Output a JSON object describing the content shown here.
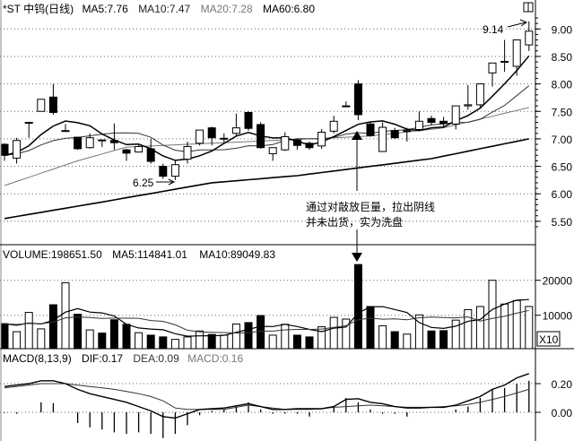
{
  "price_header": {
    "title": "*ST 中钨(日线)",
    "ma5": "MA5:7.76",
    "ma10": "MA10:7.47",
    "ma20": "MA20:7.28",
    "ma60": "MA60:6.80"
  },
  "volume_header": {
    "volume": "VOLUME:198651.50",
    "ma5": "MA5:114841.01",
    "ma10": "MA10:89049.83"
  },
  "macd_header": {
    "params": "MACD(8,13,9)",
    "dif": "DIF:0.17",
    "dea": "DEA:0.09",
    "macd": "MACD:0.16"
  },
  "annotations": {
    "high_label": "9.14",
    "low_label": "6.25",
    "note_line1": "通过对敲放巨量，拉出阴线",
    "note_line2": "并未出货，实为洗盘"
  },
  "colors": {
    "up": "#ffffff",
    "down": "#000000",
    "line": "#000000",
    "ma20": "#777777",
    "grid": "#888888"
  },
  "chart_data": [
    {
      "type": "candlestick",
      "title": "*ST 中钨(日线)",
      "fields": [
        "open",
        "close",
        "high",
        "low"
      ],
      "yticks": [
        "5.50",
        "6.00",
        "6.50",
        "7.00",
        "7.50",
        "8.00",
        "8.50",
        "9.00"
      ],
      "ylim": [
        5.3,
        9.5
      ],
      "candles": [
        [
          6.9,
          6.7,
          6.92,
          6.6
        ],
        [
          6.65,
          6.97,
          7.02,
          6.55
        ],
        [
          7.3,
          7.3,
          7.3,
          7.02
        ],
        [
          7.5,
          7.72,
          7.72,
          7.5
        ],
        [
          7.76,
          7.48,
          8.0,
          7.44
        ],
        [
          7.14,
          7.15,
          7.27,
          7.14
        ],
        [
          7.03,
          6.82,
          7.03,
          6.8
        ],
        [
          6.84,
          7.02,
          7.1,
          6.82
        ],
        [
          6.98,
          6.97,
          6.98,
          6.85
        ],
        [
          6.97,
          6.93,
          7.28,
          6.8
        ],
        [
          6.8,
          6.74,
          6.82,
          6.6
        ],
        [
          6.76,
          6.86,
          6.9,
          6.75
        ],
        [
          6.82,
          6.59,
          7.0,
          6.55
        ],
        [
          6.5,
          6.32,
          6.55,
          6.27
        ],
        [
          6.32,
          6.53,
          6.6,
          6.25
        ],
        [
          6.63,
          6.86,
          6.95,
          6.55
        ],
        [
          6.92,
          7.16,
          7.16,
          6.88
        ],
        [
          7.2,
          7.02,
          7.22,
          6.88
        ],
        [
          7.0,
          7.01,
          7.1,
          6.93
        ],
        [
          7.1,
          7.2,
          7.46,
          7.05
        ],
        [
          7.48,
          7.19,
          7.5,
          7.15
        ],
        [
          7.26,
          6.84,
          7.3,
          6.82
        ],
        [
          6.73,
          6.84,
          6.84,
          6.6
        ],
        [
          6.8,
          7.04,
          7.12,
          6.78
        ],
        [
          6.98,
          6.88,
          7.0,
          6.8
        ],
        [
          6.92,
          6.84,
          6.95,
          6.8
        ],
        [
          6.87,
          7.12,
          7.18,
          6.82
        ],
        [
          7.14,
          7.32,
          7.42,
          7.1
        ],
        [
          7.6,
          7.6,
          7.68,
          7.58
        ],
        [
          8.0,
          7.44,
          8.07,
          7.34
        ],
        [
          7.27,
          7.06,
          7.3,
          7.04
        ],
        [
          6.77,
          7.21,
          7.3,
          6.76
        ],
        [
          7.15,
          7.02,
          7.2,
          7.0
        ],
        [
          7.14,
          7.15,
          7.2,
          6.95
        ],
        [
          7.17,
          7.32,
          7.5,
          7.15
        ],
        [
          7.37,
          7.3,
          7.42,
          7.25
        ],
        [
          7.32,
          7.28,
          7.4,
          7.22
        ],
        [
          7.27,
          7.6,
          7.6,
          7.17
        ],
        [
          7.6,
          7.62,
          7.98,
          7.53
        ],
        [
          7.62,
          8.0,
          8.0,
          7.55
        ],
        [
          8.2,
          8.38,
          8.38,
          7.95
        ],
        [
          8.4,
          8.41,
          8.8,
          8.22
        ],
        [
          8.32,
          8.8,
          8.8,
          8.15
        ],
        [
          8.71,
          8.96,
          9.14,
          8.6
        ]
      ],
      "ma20_samples": {
        "index": [
          0,
          6,
          10,
          20,
          30,
          36,
          43
        ],
        "value": [
          6.15,
          6.6,
          6.85,
          6.95,
          7.05,
          7.2,
          7.57
        ]
      },
      "ma60_samples": {
        "index": [
          0,
          8,
          17,
          24,
          35,
          43
        ],
        "value": [
          5.55,
          5.85,
          6.2,
          6.33,
          6.64,
          7.0
        ]
      }
    },
    {
      "type": "bar",
      "title": "VOLUME",
      "multiplier_label": "X10",
      "yticks": [
        "10000",
        "20000"
      ],
      "ylim": [
        0,
        25000
      ],
      "values": [
        7600,
        5300,
        10800,
        6100,
        13000,
        19300,
        10300,
        5800,
        4900,
        8700,
        7400,
        5000,
        4300,
        3800,
        3100,
        3800,
        5500,
        4500,
        4300,
        7500,
        7900,
        9900,
        4300,
        7400,
        4300,
        3800,
        6700,
        9400,
        8900,
        24500,
        12500,
        7000,
        5300,
        4600,
        10100,
        5500,
        5600,
        8600,
        11600,
        12500,
        20000,
        13200,
        14200,
        12500
      ]
    },
    {
      "type": "line",
      "title": "MACD(8,13,9)",
      "yticks": [
        "0.00",
        "0.20"
      ],
      "ylim": [
        -0.2,
        0.3
      ],
      "dif": [
        0.18,
        0.19,
        0.2,
        0.22,
        0.22,
        0.2,
        0.16,
        0.13,
        0.11,
        0.09,
        0.07,
        0.04,
        0.01,
        -0.03,
        -0.04,
        -0.01,
        0.02,
        0.025,
        0.03,
        0.045,
        0.06,
        0.04,
        0.02,
        0.02,
        0.025,
        0.025,
        0.025,
        0.04,
        0.09,
        0.095,
        0.07,
        0.06,
        0.04,
        0.03,
        0.03,
        0.035,
        0.035,
        0.05,
        0.08,
        0.11,
        0.16,
        0.19,
        0.24,
        0.27
      ],
      "dea": [
        0.17,
        0.18,
        0.19,
        0.2,
        0.2,
        0.2,
        0.19,
        0.18,
        0.17,
        0.16,
        0.145,
        0.13,
        0.11,
        0.08,
        0.03,
        0.02,
        0.02,
        0.02,
        0.02,
        0.035,
        0.05,
        0.04,
        0.03,
        0.02,
        0.02,
        0.02,
        0.025,
        0.035,
        0.04,
        0.045,
        0.05,
        0.045,
        0.04,
        0.035,
        0.035,
        0.035,
        0.04,
        0.045,
        0.055,
        0.07,
        0.09,
        0.11,
        0.135,
        0.16
      ],
      "histogram": [
        -0.005,
        -0.01,
        0.0,
        0.07,
        0.065,
        0.0,
        -0.075,
        -0.105,
        -0.12,
        -0.14,
        -0.15,
        -0.14,
        -0.15,
        -0.18,
        -0.15,
        -0.09,
        -0.02,
        0.01,
        0.02,
        0.05,
        0.07,
        0.02,
        -0.01,
        -0.01,
        -0.01,
        -0.03,
        0.0,
        0.04,
        0.1,
        0.07,
        0.02,
        -0.01,
        -0.01,
        -0.03,
        0.0,
        0.0,
        0.0,
        0.02,
        0.04,
        0.1,
        0.16,
        0.17,
        0.2,
        0.22
      ]
    }
  ]
}
